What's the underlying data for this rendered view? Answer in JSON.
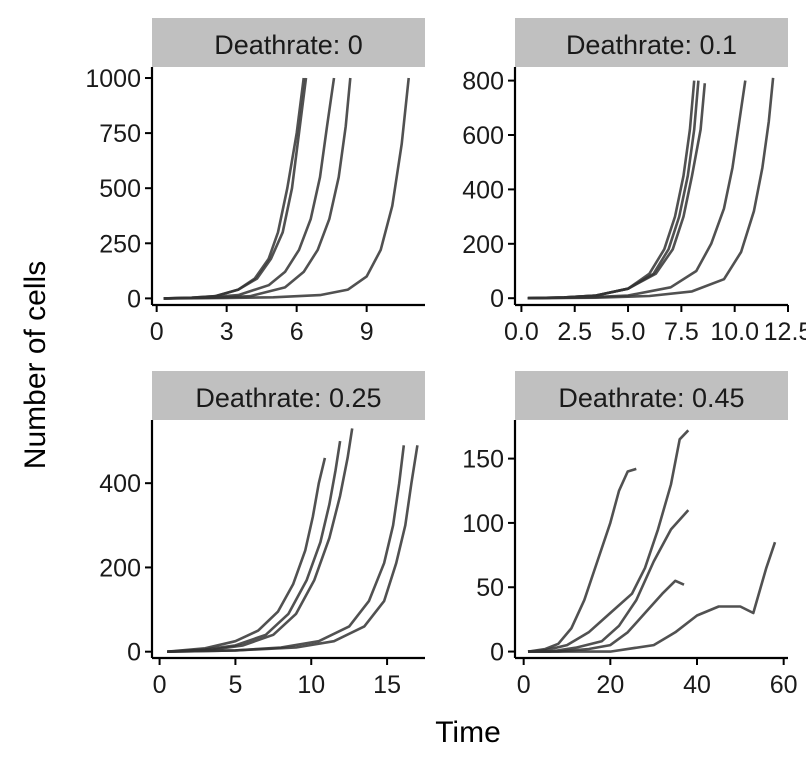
{
  "figure": {
    "xlabel": "Time",
    "ylabel": "Number of cells"
  },
  "colors": {
    "line": "#333333",
    "strip_fill": "#c0c0c0",
    "axis": "#000000"
  },
  "chart_data": [
    {
      "type": "line",
      "title": "Deathrate: 0",
      "xlim": [
        -0.2,
        11.5
      ],
      "ylim": [
        -30,
        1050
      ],
      "xticks": [
        0,
        3,
        6,
        9
      ],
      "yticks": [
        0,
        250,
        500,
        750,
        1000
      ],
      "series": [
        {
          "x": [
            0.3,
            1.5,
            2.5,
            3.5,
            4.2,
            4.8,
            5.2,
            5.6,
            6.0,
            6.3
          ],
          "y": [
            0,
            3,
            10,
            40,
            90,
            180,
            300,
            500,
            750,
            1000
          ]
        },
        {
          "x": [
            0.3,
            1.5,
            2.5,
            3.5,
            4.3,
            4.9,
            5.4,
            5.8,
            6.1,
            6.4
          ],
          "y": [
            0,
            3,
            10,
            40,
            90,
            180,
            300,
            500,
            750,
            1000
          ]
        },
        {
          "x": [
            0.3,
            2.0,
            3.5,
            4.8,
            5.5,
            6.1,
            6.6,
            7.0,
            7.3,
            7.6
          ],
          "y": [
            0,
            3,
            15,
            60,
            120,
            220,
            360,
            550,
            780,
            1000
          ]
        },
        {
          "x": [
            0.3,
            2.5,
            4.0,
            5.5,
            6.3,
            6.9,
            7.4,
            7.8,
            8.1,
            8.3
          ],
          "y": [
            0,
            3,
            10,
            50,
            120,
            220,
            360,
            550,
            780,
            1000
          ]
        },
        {
          "x": [
            0.3,
            3.0,
            5.0,
            7.0,
            8.2,
            9.0,
            9.6,
            10.1,
            10.5,
            10.8
          ],
          "y": [
            0,
            2,
            5,
            15,
            40,
            100,
            220,
            420,
            700,
            1000
          ]
        }
      ]
    },
    {
      "type": "line",
      "title": "Deathrate: 0.1",
      "xlim": [
        -0.3,
        12.5
      ],
      "ylim": [
        -25,
        850
      ],
      "xticks": [
        0.0,
        2.5,
        5.0,
        7.5,
        10.0,
        12.5
      ],
      "xtick_labels": [
        "0.0",
        "2.5",
        "5.0",
        "7.5",
        "10.0",
        "12.5"
      ],
      "yticks": [
        0,
        200,
        400,
        600,
        800
      ],
      "series": [
        {
          "x": [
            0.3,
            2.0,
            3.5,
            5.0,
            6.0,
            6.7,
            7.2,
            7.6,
            7.9,
            8.1
          ],
          "y": [
            0,
            3,
            10,
            35,
            90,
            180,
            300,
            450,
            620,
            800
          ]
        },
        {
          "x": [
            0.3,
            2.0,
            3.5,
            5.0,
            6.2,
            6.9,
            7.4,
            7.8,
            8.1,
            8.3
          ],
          "y": [
            0,
            3,
            10,
            35,
            90,
            180,
            300,
            450,
            620,
            800
          ]
        },
        {
          "x": [
            0.3,
            2.0,
            3.5,
            5.0,
            6.3,
            7.1,
            7.6,
            8.0,
            8.4,
            8.6
          ],
          "y": [
            0,
            3,
            10,
            35,
            90,
            180,
            300,
            450,
            620,
            790
          ]
        },
        {
          "x": [
            0.3,
            3.0,
            5.0,
            7.0,
            8.2,
            8.9,
            9.5,
            9.9,
            10.2,
            10.5
          ],
          "y": [
            0,
            3,
            10,
            40,
            100,
            200,
            330,
            480,
            640,
            800
          ]
        },
        {
          "x": [
            0.3,
            3.5,
            6.0,
            8.0,
            9.5,
            10.3,
            10.9,
            11.3,
            11.6,
            11.8
          ],
          "y": [
            0,
            2,
            8,
            25,
            70,
            170,
            320,
            480,
            650,
            810
          ]
        }
      ]
    },
    {
      "type": "line",
      "title": "Deathrate: 0.25",
      "xlim": [
        -0.5,
        17.5
      ],
      "ylim": [
        -15,
        550
      ],
      "xticks": [
        0,
        5,
        10,
        15
      ],
      "yticks": [
        0,
        200,
        400
      ],
      "series": [
        {
          "x": [
            0.5,
            3.0,
            5.0,
            6.5,
            7.8,
            8.8,
            9.6,
            10.1,
            10.5,
            10.9
          ],
          "y": [
            0,
            8,
            25,
            50,
            95,
            160,
            240,
            320,
            400,
            460
          ]
        },
        {
          "x": [
            0.5,
            3.0,
            5.0,
            7.0,
            8.5,
            9.7,
            10.6,
            11.2,
            11.6,
            11.9
          ],
          "y": [
            0,
            5,
            15,
            40,
            90,
            170,
            260,
            350,
            430,
            500
          ]
        },
        {
          "x": [
            0.5,
            3.5,
            5.5,
            7.5,
            9.0,
            10.2,
            11.2,
            11.9,
            12.4,
            12.7
          ],
          "y": [
            0,
            5,
            15,
            40,
            90,
            170,
            270,
            370,
            460,
            530
          ]
        },
        {
          "x": [
            0.5,
            5.0,
            8.0,
            10.5,
            12.5,
            13.8,
            14.8,
            15.4,
            15.8,
            16.1
          ],
          "y": [
            0,
            3,
            10,
            25,
            60,
            120,
            210,
            300,
            400,
            490
          ]
        },
        {
          "x": [
            0.5,
            5.0,
            9.0,
            11.5,
            13.5,
            14.8,
            15.6,
            16.2,
            16.6,
            17.0
          ],
          "y": [
            0,
            3,
            10,
            25,
            60,
            120,
            210,
            300,
            400,
            490
          ]
        }
      ]
    },
    {
      "type": "line",
      "title": "Deathrate: 0.45",
      "xlim": [
        -2,
        61
      ],
      "ylim": [
        -5,
        180
      ],
      "xticks": [
        0,
        20,
        40,
        60
      ],
      "yticks": [
        0,
        50,
        100,
        150
      ],
      "series": [
        {
          "x": [
            1,
            5,
            8,
            11,
            14,
            17,
            20,
            22,
            24,
            26
          ],
          "y": [
            0,
            2,
            6,
            18,
            40,
            70,
            100,
            125,
            140,
            142
          ]
        },
        {
          "x": [
            1,
            5,
            10,
            15,
            20,
            25,
            28,
            31,
            34,
            36,
            38
          ],
          "y": [
            0,
            1,
            5,
            15,
            30,
            45,
            65,
            95,
            130,
            165,
            172
          ]
        },
        {
          "x": [
            1,
            6,
            12,
            18,
            22,
            26,
            30,
            34,
            38
          ],
          "y": [
            0,
            0,
            3,
            8,
            20,
            40,
            70,
            95,
            110
          ]
        },
        {
          "x": [
            1,
            8,
            15,
            20,
            24,
            28,
            32,
            35,
            37
          ],
          "y": [
            0,
            0,
            2,
            5,
            15,
            30,
            45,
            55,
            52
          ]
        },
        {
          "x": [
            1,
            10,
            20,
            30,
            35,
            40,
            45,
            50,
            53,
            56,
            58
          ],
          "y": [
            0,
            0,
            0,
            5,
            15,
            28,
            35,
            35,
            30,
            65,
            85
          ]
        }
      ]
    }
  ]
}
